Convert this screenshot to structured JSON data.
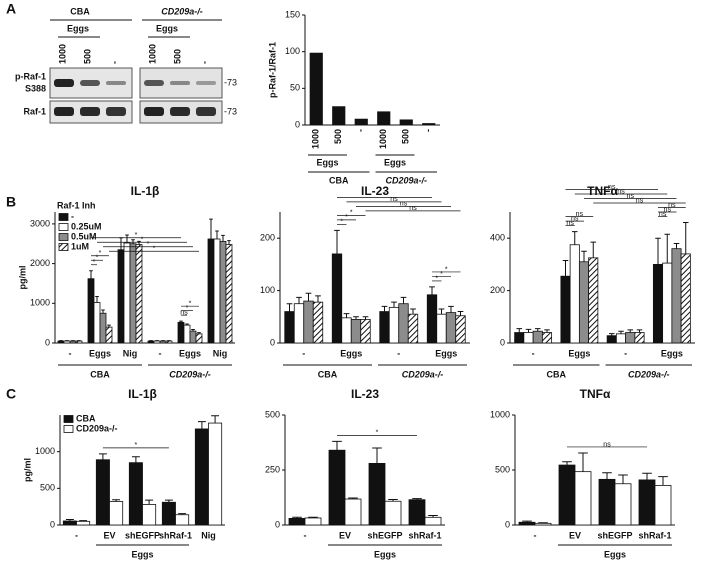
{
  "panel_labels": [
    "A",
    "B",
    "C"
  ],
  "blot": {
    "group_labels": [
      "CBA",
      "CD209a-/-"
    ],
    "eggs": [
      "Eggs",
      "Eggs"
    ],
    "lanes": [
      "1000",
      "500",
      "-",
      "1000",
      "500",
      "-"
    ],
    "row_labels": [
      "p-Raf-1",
      "S388",
      "Raf-1"
    ],
    "markers": [
      "-73",
      "-73"
    ]
  },
  "chart_data": [
    {
      "type": "bar",
      "ylabel": "p-Raf-1/Raf-1",
      "categories": [
        "1000",
        "500",
        "-",
        "1000",
        "500",
        "-"
      ],
      "values": [
        98,
        25,
        8,
        18,
        7,
        2
      ],
      "color": "#111111",
      "sub_group_labels": [
        "Eggs",
        "Eggs"
      ],
      "group_labels": [
        "CBA",
        "CD209a-/-"
      ],
      "ylim": [
        0,
        150
      ],
      "yticks": [
        0,
        50,
        100,
        150
      ]
    },
    {
      "type": "bar",
      "title": "IL-1β",
      "ylabel": "pg/ml",
      "legend": "upper left",
      "legend_title": "Raf-1 Inh",
      "categories": [
        "-",
        "Eggs",
        "Nig",
        "-",
        "Eggs",
        "Nig"
      ],
      "group_labels": [
        "CBA",
        "CD209a-/-"
      ],
      "series": [
        {
          "name": "-",
          "color": "#111111",
          "values": [
            50,
            1620,
            2350,
            50,
            520,
            2620
          ],
          "errors": [
            10,
            200,
            300,
            10,
            30,
            500
          ]
        },
        {
          "name": "0.25uM",
          "color": "#ffffff",
          "values": [
            50,
            1020,
            2520,
            50,
            450,
            2620
          ],
          "errors": [
            10,
            150,
            200,
            10,
            30,
            200
          ]
        },
        {
          "name": "0.5uM",
          "color": "#8c8c8c",
          "values": [
            50,
            750,
            2500,
            50,
            300,
            2560
          ],
          "errors": [
            10,
            80,
            100,
            10,
            40,
            150
          ]
        },
        {
          "name": "1uM",
          "color": "#ffffff",
          "hatch": true,
          "values": [
            50,
            400,
            2480,
            50,
            230,
            2480
          ],
          "errors": [
            10,
            50,
            80,
            10,
            30,
            100
          ]
        }
      ],
      "ylim": [
        0,
        3300
      ],
      "yticks": [
        0,
        1000,
        2000,
        3000
      ],
      "annotations": [
        "*",
        "*",
        "*",
        "*",
        "*",
        "*",
        "*",
        "ns",
        "*",
        "*"
      ]
    },
    {
      "type": "bar",
      "title": "IL-23",
      "categories": [
        "-",
        "Eggs",
        "-",
        "Eggs"
      ],
      "group_labels": [
        "CBA",
        "CD209a-/-"
      ],
      "series": [
        {
          "color": "#111111",
          "values": [
            60,
            170,
            60,
            92
          ],
          "errors": [
            15,
            45,
            10,
            15
          ]
        },
        {
          "color": "#ffffff",
          "values": [
            75,
            48,
            68,
            55
          ],
          "errors": [
            12,
            8,
            10,
            10
          ]
        },
        {
          "color": "#8c8c8c",
          "values": [
            80,
            45,
            75,
            58
          ],
          "errors": [
            15,
            5,
            12,
            12
          ]
        },
        {
          "color": "#ffffff",
          "hatch": true,
          "values": [
            78,
            45,
            55,
            52
          ],
          "errors": [
            12,
            5,
            10,
            8
          ]
        }
      ],
      "ylim": [
        0,
        250
      ],
      "yticks": [
        0,
        100,
        200
      ],
      "annotations": [
        "*",
        "ns",
        "ns",
        "ns",
        "*",
        "*",
        "*",
        "*",
        "*",
        "*"
      ]
    },
    {
      "type": "bar",
      "title": "TNFα",
      "categories": [
        "-",
        "Eggs",
        "-",
        "Eggs"
      ],
      "group_labels": [
        "CBA",
        "CD209a-/-"
      ],
      "series": [
        {
          "color": "#111111",
          "values": [
            40,
            255,
            28,
            300
          ],
          "errors": [
            15,
            60,
            8,
            100
          ]
        },
        {
          "color": "#ffffff",
          "values": [
            40,
            375,
            35,
            305
          ],
          "errors": [
            12,
            50,
            10,
            110
          ]
        },
        {
          "color": "#8c8c8c",
          "values": [
            45,
            310,
            40,
            360
          ],
          "errors": [
            10,
            40,
            10,
            20
          ]
        },
        {
          "color": "#ffffff",
          "hatch": true,
          "values": [
            40,
            325,
            40,
            340
          ],
          "errors": [
            10,
            60,
            10,
            120
          ]
        }
      ],
      "ylim": [
        0,
        500
      ],
      "yticks": [
        0,
        200,
        400
      ],
      "annotations": [
        "ns",
        "ns",
        "ns",
        "ns",
        "ns",
        "ns",
        "ns",
        "ns",
        "ns",
        "ns"
      ]
    },
    {
      "type": "bar",
      "title": "IL-1β",
      "ylabel": "pg/ml",
      "legend": "upper left",
      "categories": [
        "-",
        "EV",
        "shEGFP",
        "shRaf-1",
        "Nig"
      ],
      "group_labels": [
        "Eggs"
      ],
      "series": [
        {
          "name": "CBA",
          "color": "#111111",
          "values": [
            55,
            890,
            850,
            310,
            1310
          ],
          "errors": [
            20,
            80,
            80,
            30,
            100
          ]
        },
        {
          "name": "CD209a-/-",
          "color": "#ffffff",
          "values": [
            50,
            320,
            280,
            140,
            1390
          ],
          "errors": [
            10,
            25,
            60,
            15,
            100
          ]
        }
      ],
      "ylim": [
        0,
        1500
      ],
      "yticks": [
        0,
        500,
        1000
      ],
      "annotations": [
        "*"
      ]
    },
    {
      "type": "bar",
      "title": "IL-23",
      "categories": [
        "-",
        "EV",
        "shEGFP",
        "shRaf-1"
      ],
      "group_labels": [
        "Eggs"
      ],
      "series": [
        {
          "color": "#111111",
          "values": [
            30,
            340,
            280,
            115
          ],
          "errors": [
            5,
            40,
            70,
            5
          ]
        },
        {
          "color": "#ffffff",
          "values": [
            32,
            118,
            108,
            35
          ],
          "errors": [
            3,
            5,
            8,
            8
          ]
        }
      ],
      "ylim": [
        0,
        500
      ],
      "yticks": [
        0,
        250,
        500
      ],
      "annotations": [
        "*"
      ]
    },
    {
      "type": "bar",
      "title": "TNFα",
      "categories": [
        "-",
        "EV",
        "shEGFP",
        "shRaf-1"
      ],
      "group_labels": [
        "Eggs"
      ],
      "series": [
        {
          "color": "#111111",
          "values": [
            25,
            545,
            415,
            410
          ],
          "errors": [
            10,
            30,
            60,
            60
          ]
        },
        {
          "color": "#ffffff",
          "values": [
            15,
            485,
            375,
            360
          ],
          "errors": [
            5,
            170,
            80,
            80
          ]
        }
      ],
      "ylim": [
        0,
        1000
      ],
      "yticks": [
        0,
        500,
        1000
      ],
      "annotations": [
        "ns"
      ]
    }
  ]
}
